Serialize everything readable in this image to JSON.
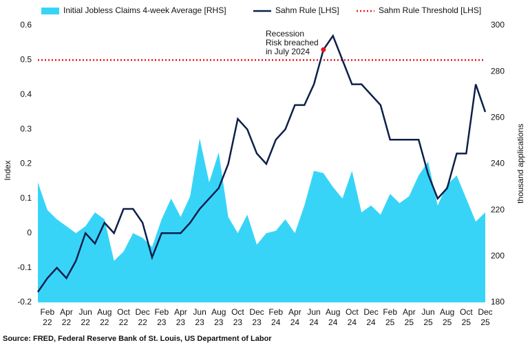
{
  "chart_data": {
    "type": "line-area",
    "source": "Source: FRED, Federal Reserve Bank of St. Louis, US Department of Labor",
    "ylabel": "Index",
    "y2label": "thousand applications",
    "categories": [
      null,
      "Feb 22",
      null,
      "Apr 22",
      null,
      "Jun 22",
      null,
      "Aug 22",
      null,
      "Oct 22",
      null,
      "Dec 22",
      null,
      "Feb 23",
      null,
      "Apr 23",
      null,
      "Jun 23",
      null,
      "Aug 23",
      null,
      "Oct 23",
      null,
      "Dec 23",
      null,
      "Feb 24",
      null,
      "Apr 24",
      null,
      "Jun 24",
      null,
      "Aug 24",
      null,
      "Oct 24",
      null,
      "Dec 24",
      null,
      "Feb 25",
      null,
      "Apr 25",
      null,
      "Jun 25",
      null,
      "Aug 25",
      null,
      "Oct 25",
      null,
      "Dec 25"
    ],
    "series": [
      {
        "name": "Initial Jobless Claims 4-week Average [RHS]",
        "color": "#38d4f8",
        "axis": "y2",
        "kind": "area",
        "values": [
          232,
          220,
          216,
          213,
          210,
          213,
          219,
          216,
          198,
          202,
          210,
          208,
          204,
          216,
          225,
          217,
          226,
          251,
          232,
          245,
          217,
          210,
          218,
          205,
          210,
          211,
          216,
          210,
          222,
          237,
          236,
          230,
          225,
          237,
          219,
          222,
          218,
          227,
          223,
          226,
          235,
          241,
          222,
          231,
          235,
          225,
          215,
          219
        ]
      },
      {
        "name": "Sahm Rule [LHS]",
        "color": "#0d1f4a",
        "kind": "line",
        "values": [
          -0.17,
          -0.13,
          -0.1,
          -0.13,
          -0.08,
          0,
          -0.03,
          0.03,
          0,
          0.07,
          0.07,
          0.03,
          -0.07,
          0,
          0,
          0,
          0.03,
          0.07,
          0.1,
          0.13,
          0.2,
          0.33,
          0.3,
          0.23,
          0.2,
          0.27,
          0.3,
          0.37,
          0.37,
          0.43,
          0.53,
          0.57,
          0.5,
          0.43,
          0.43,
          0.4,
          0.37,
          0.27,
          0.27,
          0.27,
          0.27,
          0.17,
          0.1,
          0.13,
          0.23,
          0.23,
          0.43,
          0.35
        ]
      },
      {
        "name": "Sahm Rule Threshold [LHS]",
        "color": "#e8141c",
        "kind": "threshold",
        "value": 0.5
      }
    ],
    "annotation": [
      "Recession",
      "Risk breached",
      "in July 2024"
    ],
    "ylim": [
      -0.2,
      0.6
    ],
    "yticks": [
      -0.2,
      -0.1,
      0,
      0.1,
      0.2,
      0.3,
      0.4,
      0.5,
      0.6
    ],
    "y2lim": [
      180,
      300
    ],
    "y2ticks": [
      180,
      200,
      220,
      240,
      260,
      280,
      300
    ]
  }
}
